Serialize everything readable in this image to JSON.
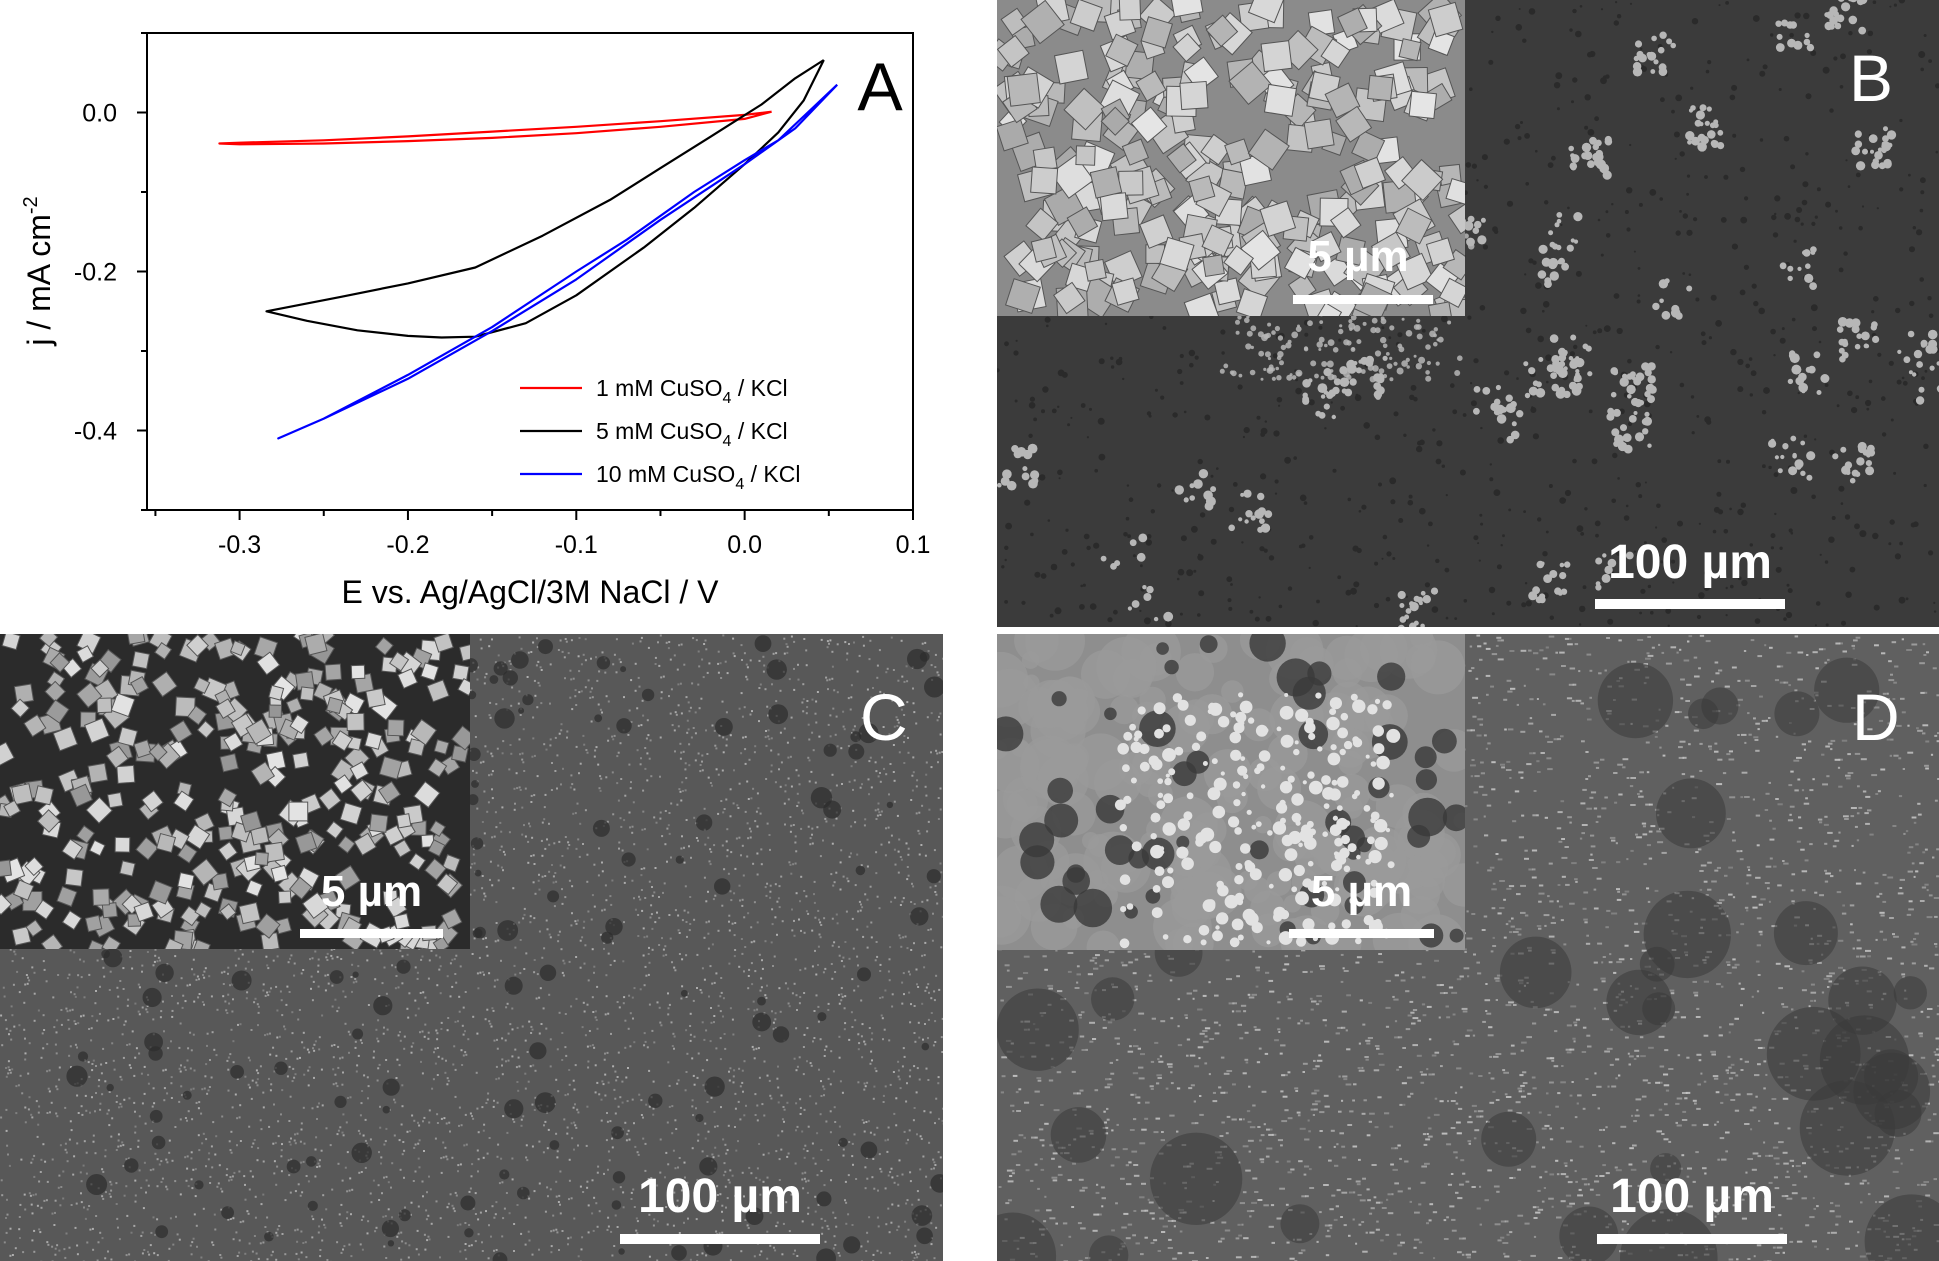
{
  "chart_data": {
    "type": "line",
    "panel_label": "A",
    "xlabel": "E vs. Ag/AgCl/3M NaCl / V",
    "ylabel": "j / mA cm",
    "ylabel_sup": "-2",
    "xlim": [
      -0.355,
      0.1
    ],
    "ylim": [
      -0.5,
      0.1
    ],
    "x_ticks": [
      -0.3,
      -0.2,
      -0.1,
      0.0,
      0.1
    ],
    "x_tick_labels": [
      "-0.3",
      "-0.2",
      "-0.1",
      "0.0",
      "0.1"
    ],
    "y_ticks": [
      0.0,
      -0.2,
      -0.4
    ],
    "y_tick_labels": [
      "0.0",
      "-0.2",
      "-0.4"
    ],
    "legend_position": "lower-right",
    "series": [
      {
        "name": "1 mM CuSO4 / KCl",
        "label_parts": [
          "1 mM CuSO",
          "4",
          " / KCl"
        ],
        "color": "#ff0000",
        "points": [
          [
            0.016,
            0.001
          ],
          [
            0.0,
            -0.003
          ],
          [
            -0.05,
            -0.011
          ],
          [
            -0.1,
            -0.018
          ],
          [
            -0.15,
            -0.024
          ],
          [
            -0.2,
            -0.03
          ],
          [
            -0.25,
            -0.035
          ],
          [
            -0.3,
            -0.038
          ],
          [
            -0.312,
            -0.039
          ],
          [
            -0.3,
            -0.04
          ],
          [
            -0.25,
            -0.039
          ],
          [
            -0.2,
            -0.036
          ],
          [
            -0.15,
            -0.032
          ],
          [
            -0.1,
            -0.026
          ],
          [
            -0.05,
            -0.018
          ],
          [
            0.0,
            -0.008
          ],
          [
            0.016,
            0.001
          ]
        ]
      },
      {
        "name": "5 mM CuSO4 / KCl",
        "label_parts": [
          "5 mM CuSO",
          "4",
          " / KCl"
        ],
        "color": "#000000",
        "points": [
          [
            0.047,
            0.066
          ],
          [
            0.03,
            0.043
          ],
          [
            0.01,
            0.01
          ],
          [
            -0.02,
            -0.03
          ],
          [
            -0.05,
            -0.07
          ],
          [
            -0.08,
            -0.11
          ],
          [
            -0.12,
            -0.155
          ],
          [
            -0.16,
            -0.195
          ],
          [
            -0.2,
            -0.215
          ],
          [
            -0.24,
            -0.232
          ],
          [
            -0.284,
            -0.25
          ],
          [
            -0.26,
            -0.262
          ],
          [
            -0.23,
            -0.274
          ],
          [
            -0.2,
            -0.281
          ],
          [
            -0.18,
            -0.283
          ],
          [
            -0.16,
            -0.282
          ],
          [
            -0.13,
            -0.265
          ],
          [
            -0.1,
            -0.23
          ],
          [
            -0.06,
            -0.17
          ],
          [
            -0.03,
            -0.12
          ],
          [
            0.0,
            -0.065
          ],
          [
            0.02,
            -0.025
          ],
          [
            0.035,
            0.015
          ],
          [
            0.047,
            0.066
          ]
        ]
      },
      {
        "name": "10 mM CuSO4 / KCl",
        "label_parts": [
          "10 mM CuSO",
          "4",
          " / KCl"
        ],
        "color": "#0000ff",
        "points": [
          [
            0.055,
            0.035
          ],
          [
            0.04,
            0.005
          ],
          [
            0.02,
            -0.035
          ],
          [
            0.0,
            -0.06
          ],
          [
            -0.03,
            -0.1
          ],
          [
            -0.07,
            -0.16
          ],
          [
            -0.1,
            -0.2
          ],
          [
            -0.15,
            -0.27
          ],
          [
            -0.2,
            -0.33
          ],
          [
            -0.25,
            -0.385
          ],
          [
            -0.277,
            -0.41
          ],
          [
            -0.25,
            -0.385
          ],
          [
            -0.2,
            -0.335
          ],
          [
            -0.15,
            -0.275
          ],
          [
            -0.1,
            -0.21
          ],
          [
            -0.05,
            -0.135
          ],
          [
            0.0,
            -0.065
          ],
          [
            0.03,
            -0.02
          ],
          [
            0.055,
            0.035
          ]
        ]
      }
    ]
  },
  "panels": [
    {
      "id": "B",
      "letter": "B",
      "inset_scale": "5 µm",
      "main_scale": "100 µm"
    },
    {
      "id": "C",
      "letter": "C",
      "inset_scale": "5 µm",
      "main_scale": "100 µm"
    },
    {
      "id": "D",
      "letter": "D",
      "inset_scale": "5 µm",
      "main_scale": "100 µm"
    }
  ]
}
